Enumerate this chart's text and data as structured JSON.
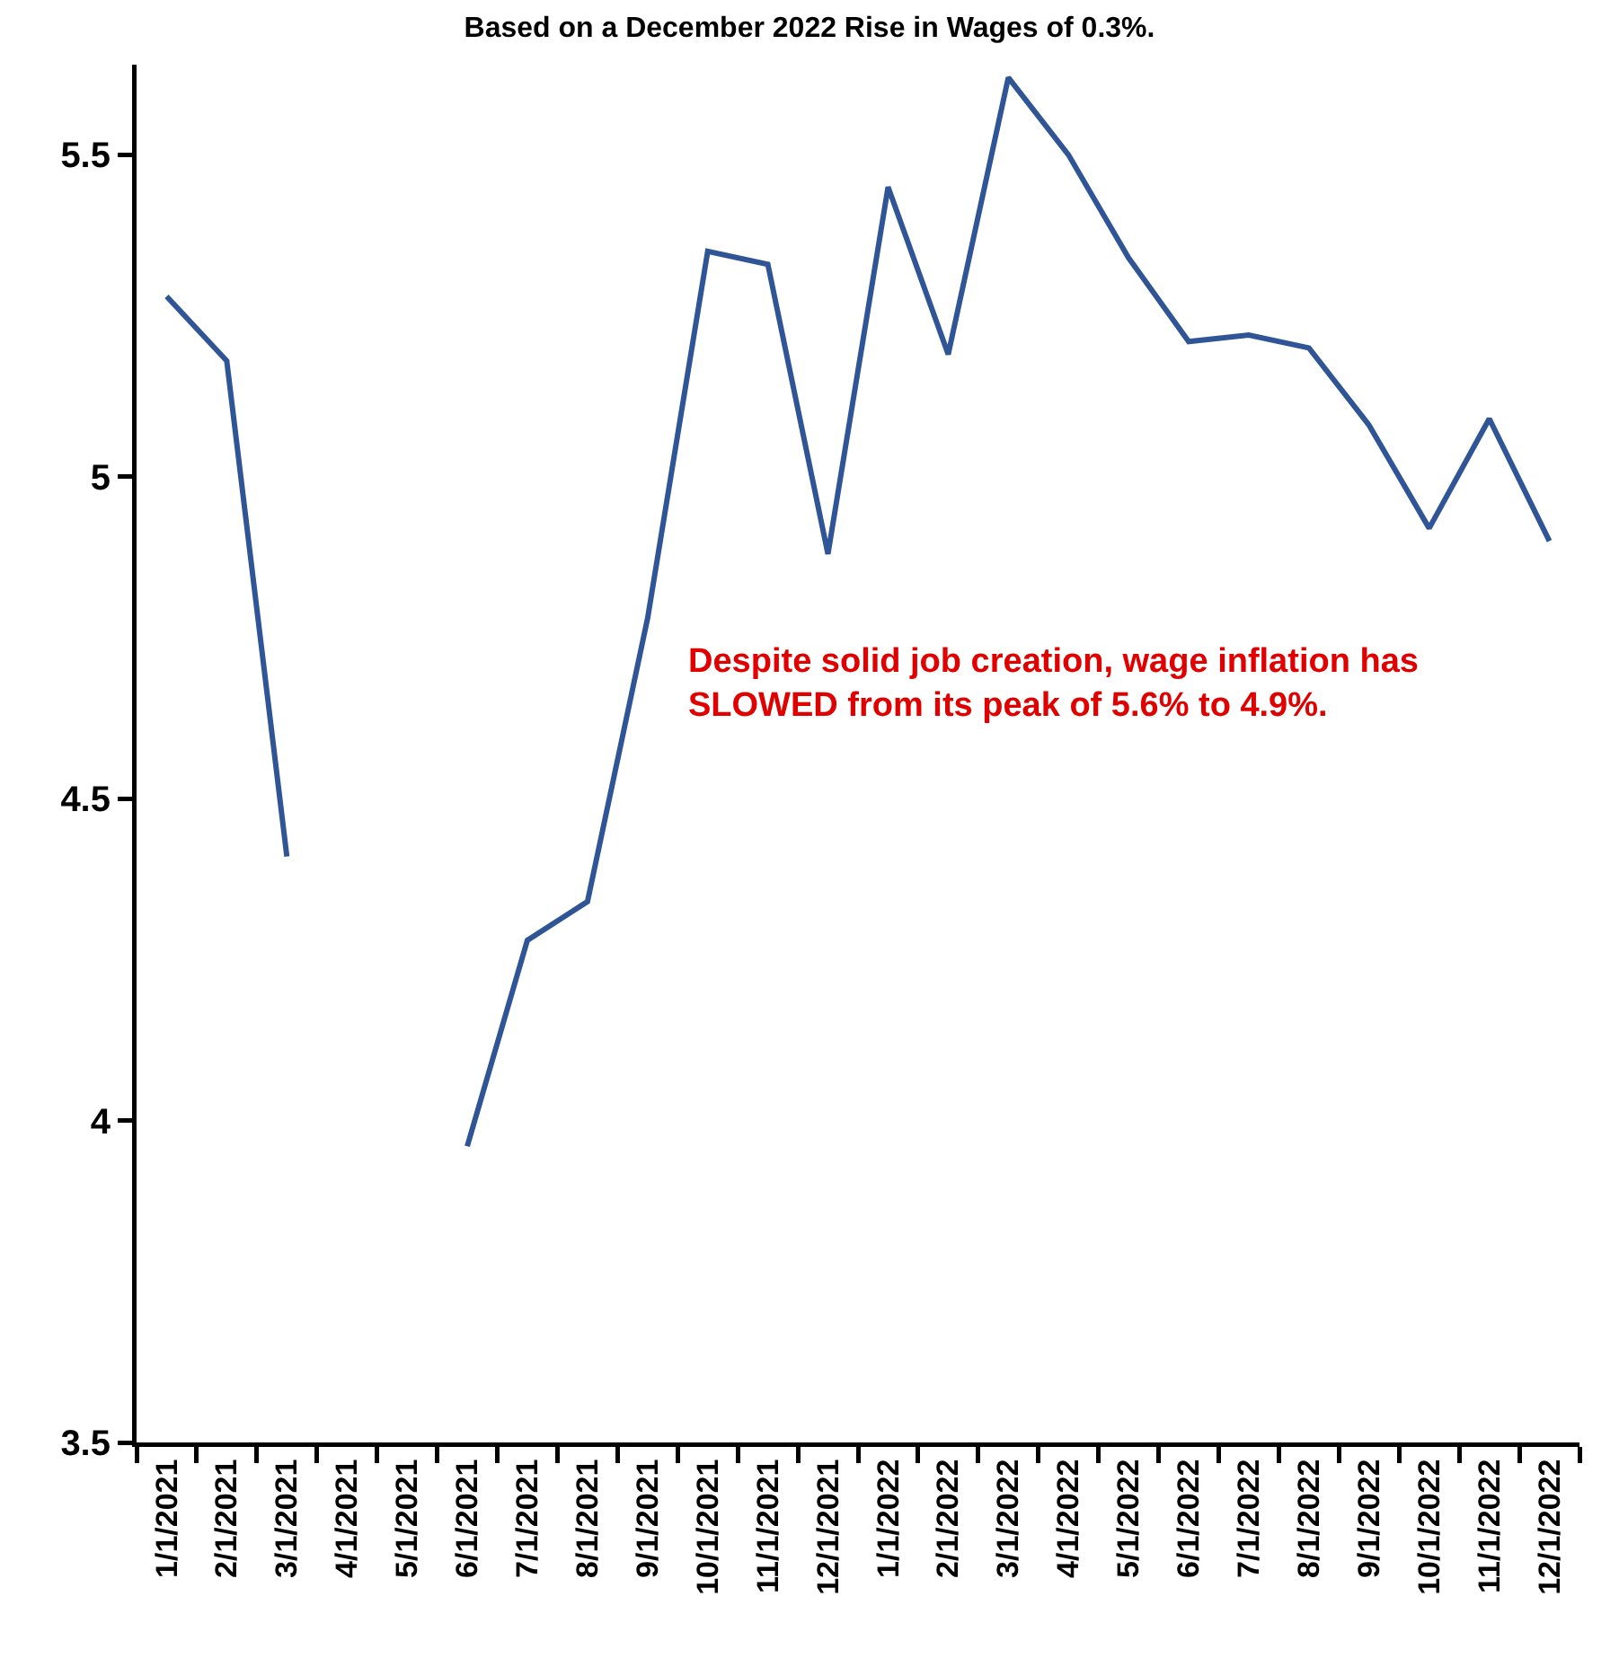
{
  "chart_data": {
    "type": "line",
    "title": "Based on a December 2022 Rise in Wages of 0.3%.",
    "categories": [
      "1/1/2021",
      "2/1/2021",
      "3/1/2021",
      "4/1/2021",
      "5/1/2021",
      "6/1/2021",
      "7/1/2021",
      "8/1/2021",
      "9/1/2021",
      "10/1/2021",
      "11/1/2021",
      "12/1/2021",
      "1/1/2022",
      "2/1/2022",
      "3/1/2022",
      "4/1/2022",
      "5/1/2022",
      "6/1/2022",
      "7/1/2022",
      "8/1/2022",
      "9/1/2022",
      "10/1/2022",
      "11/1/2022",
      "12/1/2022"
    ],
    "series": [
      {
        "color": "#2f5597",
        "values": [
          5.28,
          5.18,
          4.41,
          null,
          null,
          3.96,
          4.28,
          4.34,
          4.78,
          5.35,
          5.33,
          4.88,
          5.45,
          5.19,
          5.62,
          5.5,
          5.34,
          5.21,
          5.22,
          5.2,
          5.08,
          4.92,
          5.09,
          4.9
        ]
      }
    ],
    "ylim": [
      3.5,
      5.64
    ],
    "yticks": [
      3.5,
      4,
      4.5,
      5,
      5.5
    ],
    "grid": false,
    "marker": "none",
    "line_style": "solid",
    "annotations": [
      {
        "text": "Despite solid job creation, wage inflation has\nSLOWED from its peak of 5.6% to 4.9%."
      }
    ]
  }
}
